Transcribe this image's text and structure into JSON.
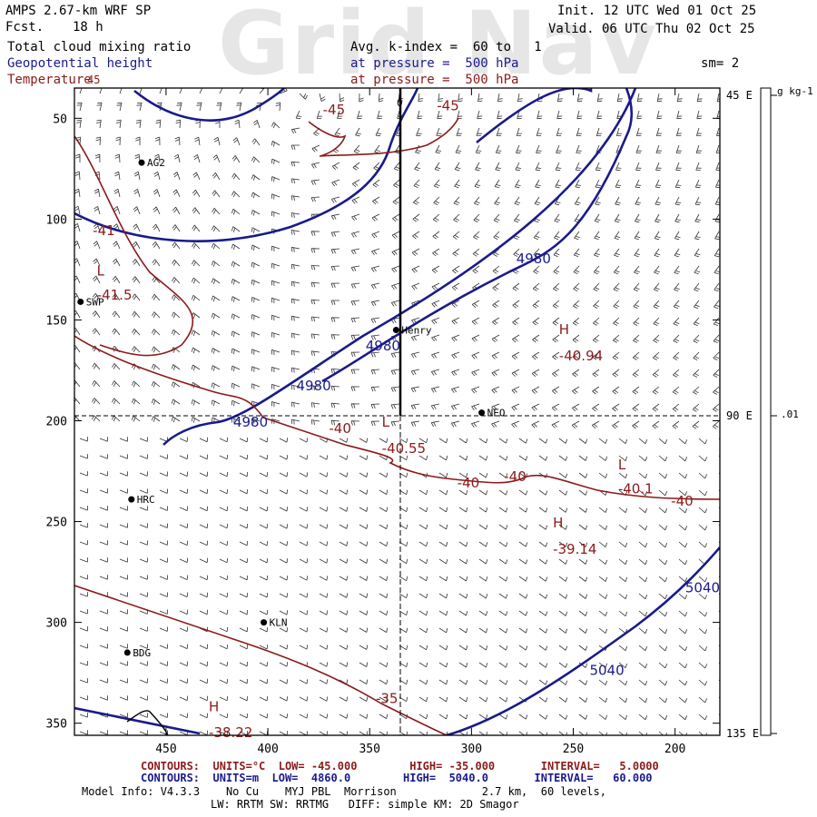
{
  "header": {
    "model": "AMPS 2.67-km WRF SP",
    "fcst_label": "Fcst.",
    "fcst_value": "18 h",
    "init": "Init. 12 UTC Wed 01 Oct 25",
    "valid": "Valid. 06 UTC Thu 02 Oct 25",
    "watermark": "Grid Nav",
    "field1": "Total cloud mixing ratio",
    "field2": "Geopotential height",
    "field3": "Temperature",
    "avg": "Avg. k-index =  60 to   1",
    "press1": "at pressure =  500 hPa",
    "press2": "at pressure =  500 hPa",
    "sm": "sm= 2"
  },
  "colors": {
    "blue": "#1a1a8c",
    "red": "#8b1a1a",
    "black": "#000000"
  },
  "axes": {
    "x_ticks": [
      {
        "v": 450,
        "label": "450"
      },
      {
        "v": 400,
        "label": "400"
      },
      {
        "v": 350,
        "label": "350"
      },
      {
        "v": 300,
        "label": "300"
      },
      {
        "v": 250,
        "label": "250"
      },
      {
        "v": 200,
        "label": "200"
      }
    ],
    "y_ticks": [
      {
        "v": 50,
        "label": "50"
      },
      {
        "v": 100,
        "label": "100"
      },
      {
        "v": 150,
        "label": "150"
      },
      {
        "v": 200,
        "label": "200"
      },
      {
        "v": 250,
        "label": "250"
      },
      {
        "v": 300,
        "label": "300"
      },
      {
        "v": 350,
        "label": "350"
      }
    ],
    "right_labels": [
      {
        "v": 45,
        "label": "45 E"
      },
      {
        "v": 90,
        "label": "90 E"
      },
      {
        "v": 135,
        "label": "135 E"
      }
    ],
    "colorbar_unit": "g kg-1",
    "colorbar_value": ".01",
    "top_label_45": "45",
    "top_label_0": "0"
  },
  "stations": [
    {
      "name": "AG2",
      "x": 462,
      "y": 72
    },
    {
      "name": "SWP",
      "x": 492,
      "y": 141
    },
    {
      "name": "Henry",
      "x": 337,
      "y": 155
    },
    {
      "name": "NEO",
      "x": 295,
      "y": 196
    },
    {
      "name": "HRC",
      "x": 467,
      "y": 239
    },
    {
      "name": "KLN",
      "x": 402,
      "y": 300
    },
    {
      "name": "BDG",
      "x": 469,
      "y": 315
    }
  ],
  "height_labels": [
    {
      "text": "4980",
      "x": 278,
      "y": 122
    },
    {
      "text": "4980",
      "x": 352,
      "y": 165
    },
    {
      "text": "4980",
      "x": 386,
      "y": 185
    },
    {
      "text": "4980",
      "x": 417,
      "y": 203
    },
    {
      "text": "5040",
      "x": 195,
      "y": 285
    },
    {
      "text": "5040",
      "x": 242,
      "y": 326
    }
  ],
  "temp_labels": [
    {
      "text": "-45",
      "x": 373,
      "y": 48
    },
    {
      "text": "-45",
      "x": 317,
      "y": 46
    },
    {
      "text": "-41",
      "x": 486,
      "y": 108
    },
    {
      "text": "L",
      "x": 484,
      "y": 128
    },
    {
      "text": "-41.5",
      "x": 484,
      "y": 140
    },
    {
      "text": "H",
      "x": 257,
      "y": 157
    },
    {
      "text": "-40.94",
      "x": 257,
      "y": 170
    },
    {
      "text": "-40",
      "x": 370,
      "y": 206
    },
    {
      "text": "L",
      "x": 344,
      "y": 203
    },
    {
      "text": "-40.55",
      "x": 344,
      "y": 216
    },
    {
      "text": "-40",
      "x": 307,
      "y": 233
    },
    {
      "text": "-40",
      "x": 284,
      "y": 230
    },
    {
      "text": "L",
      "x": 228,
      "y": 224
    },
    {
      "text": "-40.1",
      "x": 228,
      "y": 236
    },
    {
      "text": "-40",
      "x": 202,
      "y": 242
    },
    {
      "text": "H",
      "x": 260,
      "y": 253
    },
    {
      "text": "-39.14",
      "x": 260,
      "y": 266
    },
    {
      "text": "-35",
      "x": 347,
      "y": 340
    },
    {
      "text": "H",
      "x": 429,
      "y": 344
    },
    {
      "text": "-38.22",
      "x": 429,
      "y": 357
    }
  ],
  "footer": {
    "line1_label": "CONTOURS:",
    "line1": "UNITS=°C  LOW= -45.000        HIGH= -35.000       INTERVAL=   5.0000",
    "line2_label": "CONTOURS:",
    "line2": "UNITS=m  LOW=  4860.0        HIGH=  5040.0       INTERVAL=   60.000",
    "line3": "Model Info: V4.3.3    No Cu    MYJ PBL  Morrison             2.7 km,  60 levels,",
    "line4": "LW: RRTM SW: RRTMG   DIFF: simple KM: 2D Smagor"
  }
}
